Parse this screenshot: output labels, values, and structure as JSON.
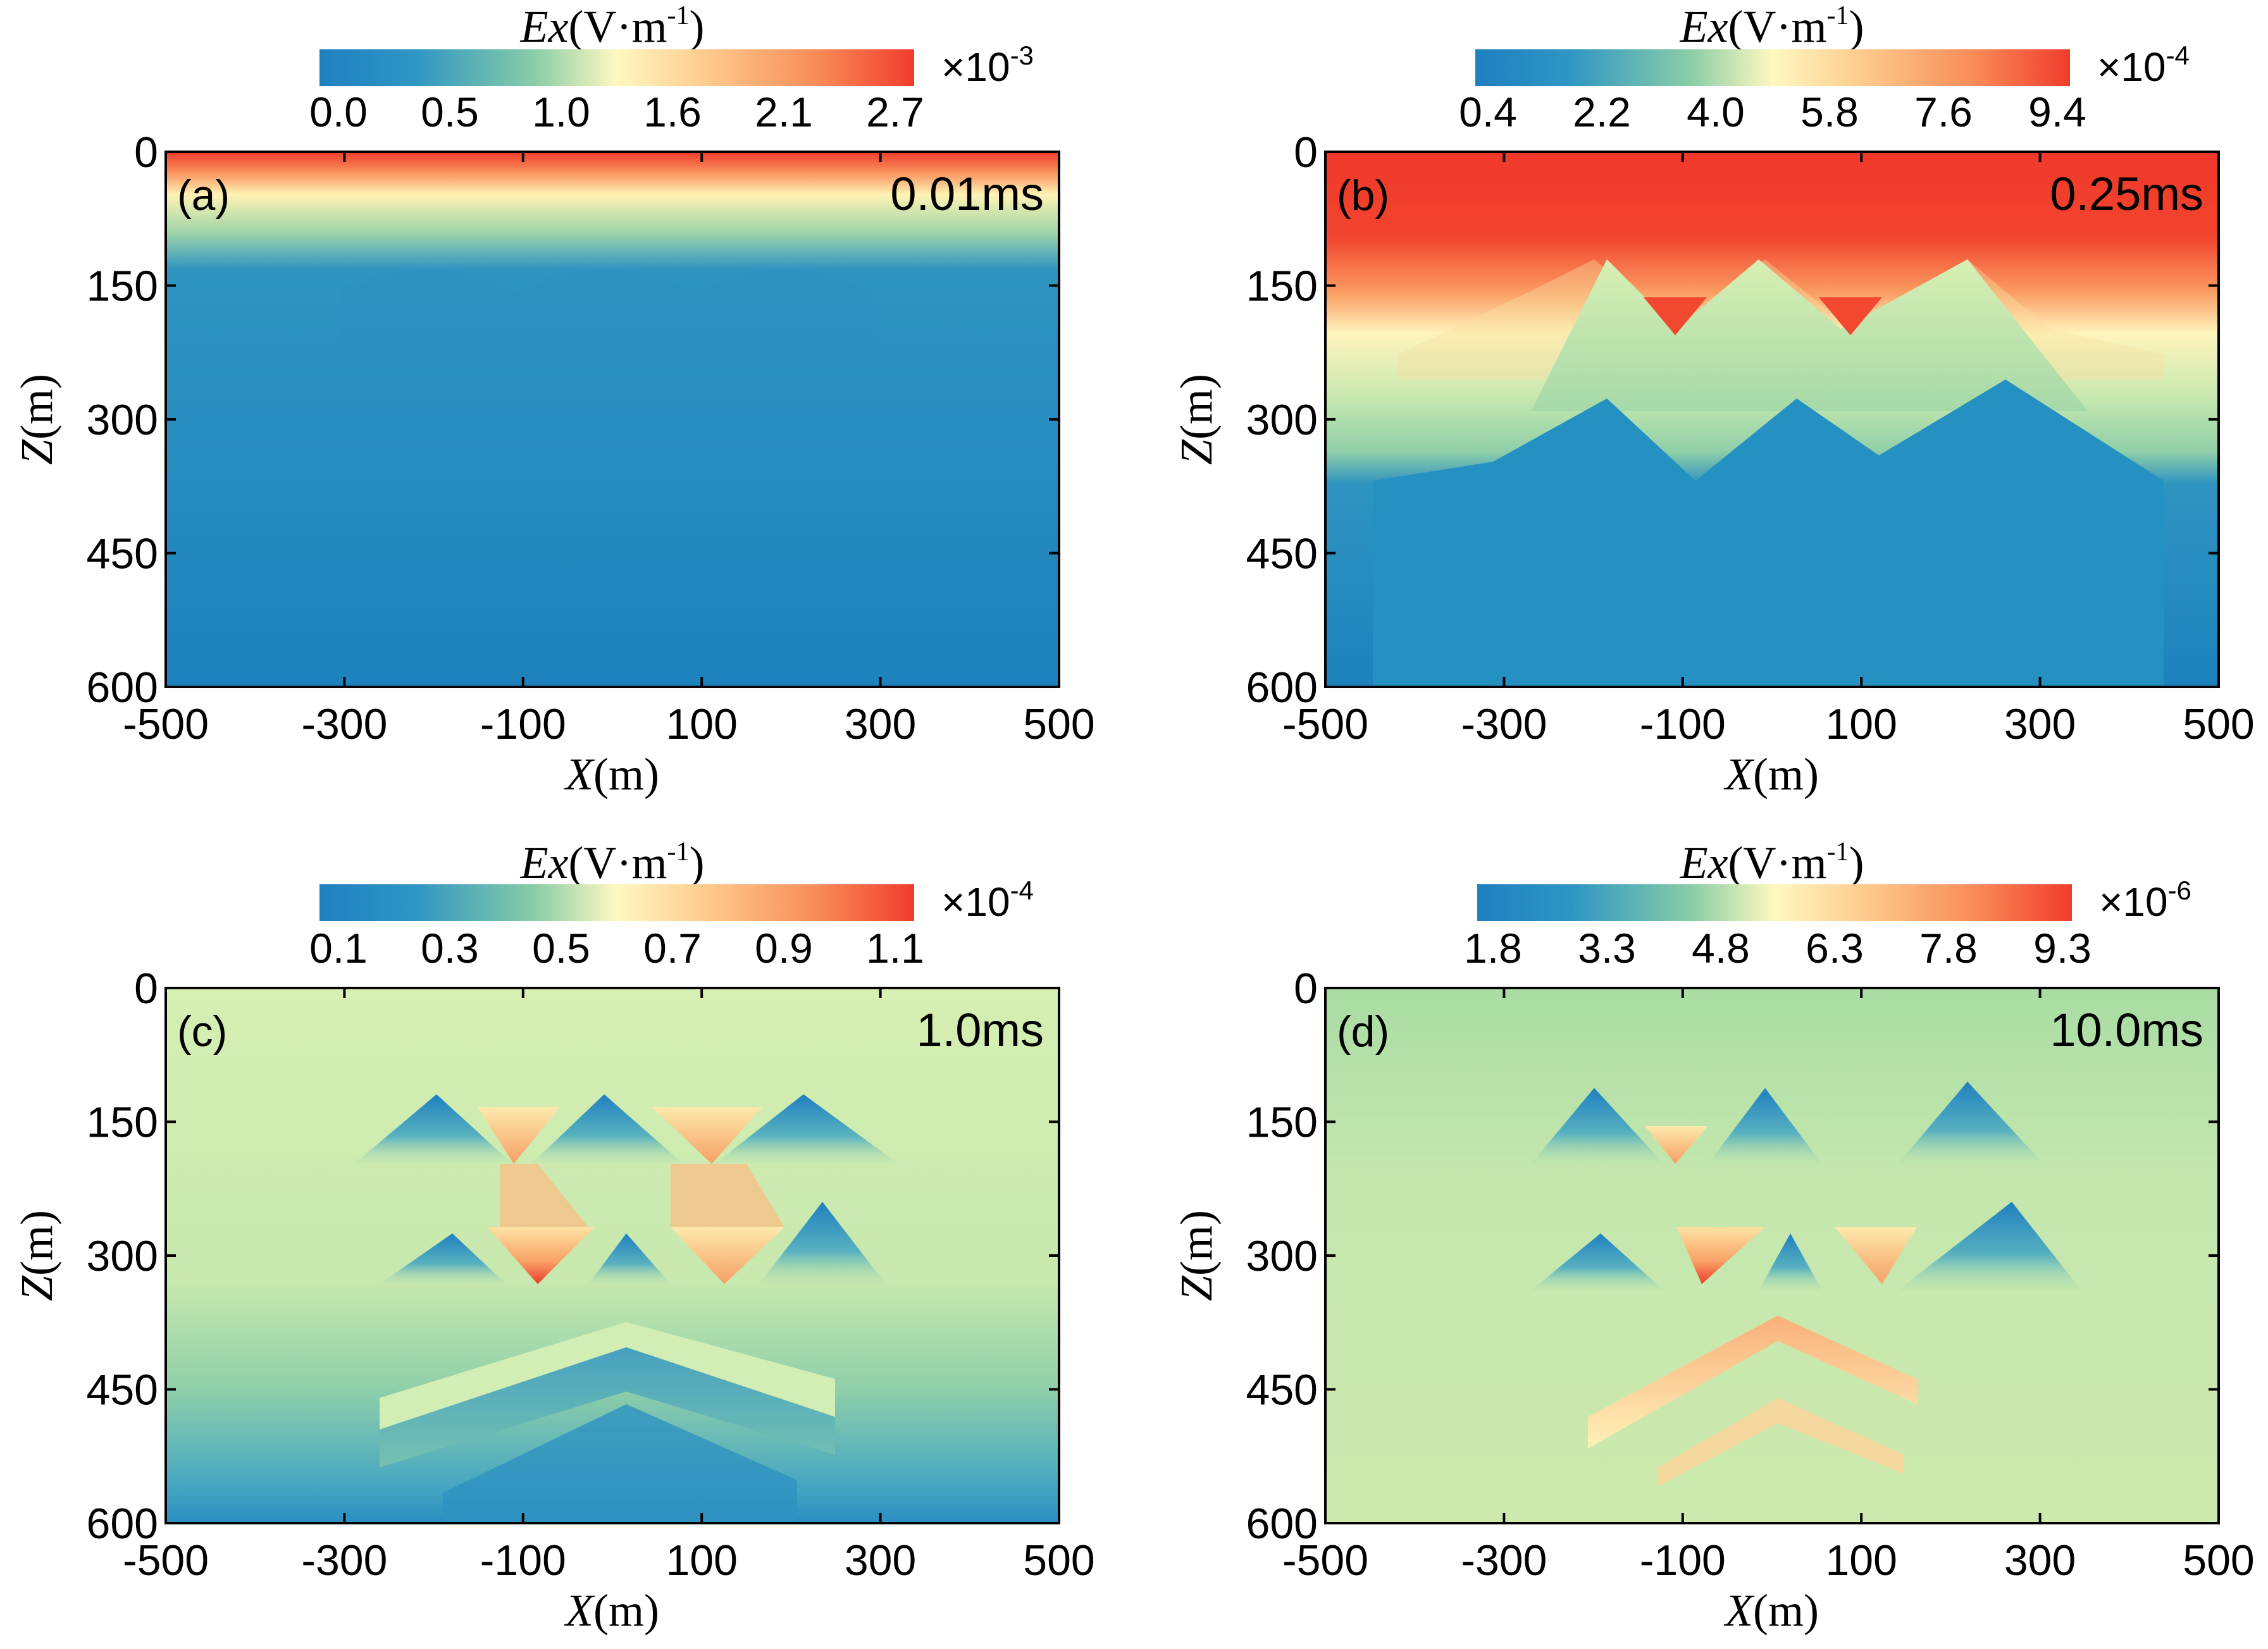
{
  "chart_data": [
    {
      "type": "heatmap",
      "panel_label": "(a)",
      "time_label": "0.01ms",
      "xlabel_italic": "X",
      "xlabel_unit": "(m)",
      "ylabel_italic": "Z",
      "ylabel_unit": "(m)",
      "xlim": [
        -500,
        500
      ],
      "ylim": [
        0,
        600
      ],
      "xticks": [
        "-500",
        "-300",
        "-100",
        "100",
        "300",
        "500"
      ],
      "yticks": [
        "0",
        "150",
        "300",
        "450",
        "600"
      ],
      "colorbar": {
        "title_italic": "Ex",
        "title_unit": "(V·m",
        "title_exp": "-1",
        "title_close": ")",
        "scale_base": "×10",
        "scale_exp": "-3",
        "ticks": [
          "0.0",
          "0.5",
          "1.0",
          "1.6",
          "2.1",
          "2.7"
        ]
      }
    },
    {
      "type": "heatmap",
      "panel_label": "(b)",
      "time_label": "0.25ms",
      "xlabel_italic": "X",
      "xlabel_unit": "(m)",
      "ylabel_italic": "Z",
      "ylabel_unit": "(m)",
      "xlim": [
        -500,
        500
      ],
      "ylim": [
        0,
        600
      ],
      "xticks": [
        "-500",
        "-300",
        "-100",
        "100",
        "300",
        "500"
      ],
      "yticks": [
        "0",
        "150",
        "300",
        "450",
        "600"
      ],
      "colorbar": {
        "title_italic": "Ex",
        "title_unit": "(V·m",
        "title_exp": "-1",
        "title_close": ")",
        "scale_base": "×10",
        "scale_exp": "-4",
        "ticks": [
          "0.4",
          "2.2",
          "4.0",
          "5.8",
          "7.6",
          "9.4"
        ]
      }
    },
    {
      "type": "heatmap",
      "panel_label": "(c)",
      "time_label": "1.0ms",
      "xlabel_italic": "X",
      "xlabel_unit": "(m)",
      "ylabel_italic": "Z",
      "ylabel_unit": "(m)",
      "xlim": [
        -500,
        500
      ],
      "ylim": [
        0,
        600
      ],
      "xticks": [
        "-500",
        "-300",
        "-100",
        "100",
        "300",
        "500"
      ],
      "yticks": [
        "0",
        "150",
        "300",
        "450",
        "600"
      ],
      "colorbar": {
        "title_italic": "Ex",
        "title_unit": "(V·m",
        "title_exp": "-1",
        "title_close": ")",
        "scale_base": "×10",
        "scale_exp": "-4",
        "ticks": [
          "0.1",
          "0.3",
          "0.5",
          "0.7",
          "0.9",
          "1.1"
        ]
      }
    },
    {
      "type": "heatmap",
      "panel_label": "(d)",
      "time_label": "10.0ms",
      "xlabel_italic": "X",
      "xlabel_unit": "(m)",
      "ylabel_italic": "Z",
      "ylabel_unit": "(m)",
      "xlim": [
        -500,
        500
      ],
      "ylim": [
        0,
        600
      ],
      "xticks": [
        "-500",
        "-300",
        "-100",
        "100",
        "300",
        "500"
      ],
      "yticks": [
        "0",
        "150",
        "300",
        "450",
        "600"
      ],
      "colorbar": {
        "title_italic": "Ex",
        "title_unit": "(V·m",
        "title_exp": "-1",
        "title_close": ")",
        "scale_base": "×10",
        "scale_exp": "-6",
        "ticks": [
          "1.8",
          "3.3",
          "4.8",
          "6.3",
          "7.8",
          "9.3"
        ]
      }
    }
  ],
  "colors": {
    "c0": "#1f80c0",
    "c1": "#2f96c4",
    "c2": "#88cda6",
    "c3": "#d8efb2",
    "c4": "#fff8c0",
    "c5": "#fdc88a",
    "c6": "#f98a58",
    "c7": "#f03c2c",
    "background": "#ffffff",
    "axis": "#000000"
  }
}
